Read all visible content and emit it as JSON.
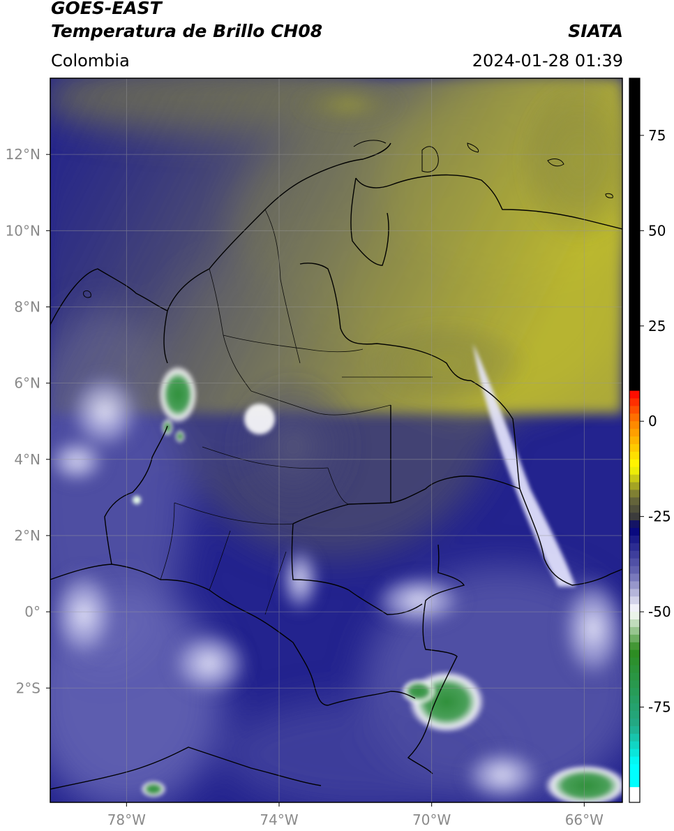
{
  "header": {
    "satellite": "GOES-EAST",
    "product": "Temperatura de Brillo CH08",
    "region": "Colombia",
    "agency": "SIATA",
    "timestamp": "2024-01-28 01:39"
  },
  "map": {
    "lon_range": [
      -80,
      -65
    ],
    "lat_range": [
      -5,
      14
    ],
    "lon_ticks": [
      {
        "value": -78,
        "label": "78°W"
      },
      {
        "value": -74,
        "label": "74°W"
      },
      {
        "value": -70,
        "label": "70°W"
      },
      {
        "value": -66,
        "label": "66°W"
      }
    ],
    "lat_ticks": [
      {
        "value": 12,
        "label": "12°N"
      },
      {
        "value": 10,
        "label": "10°N"
      },
      {
        "value": 8,
        "label": "8°N"
      },
      {
        "value": 6,
        "label": "6°N"
      },
      {
        "value": 4,
        "label": "4°N"
      },
      {
        "value": 2,
        "label": "2°N"
      },
      {
        "value": 0,
        "label": "0°"
      },
      {
        "value": -2,
        "label": "2°S"
      }
    ],
    "grid": true
  },
  "colorbar": {
    "range": [
      -100,
      90
    ],
    "ticks": [
      {
        "value": 75,
        "label": "75"
      },
      {
        "value": 50,
        "label": "50"
      },
      {
        "value": 25,
        "label": "25"
      },
      {
        "value": 0,
        "label": "0"
      },
      {
        "value": -25,
        "label": "-25"
      },
      {
        "value": -50,
        "label": "-50"
      },
      {
        "value": -75,
        "label": "-75"
      }
    ],
    "stops": [
      {
        "value": 90,
        "color": "#000000"
      },
      {
        "value": 8,
        "color": "#000000"
      },
      {
        "value": 7.9,
        "color": "#ff0000"
      },
      {
        "value": 0,
        "color": "#ff7f00"
      },
      {
        "value": -12,
        "color": "#ffff00"
      },
      {
        "value": -20,
        "color": "#6e6e3a"
      },
      {
        "value": -25,
        "color": "#3c3c3c"
      },
      {
        "value": -28,
        "color": "#00007a"
      },
      {
        "value": -40,
        "color": "#6a6ab4"
      },
      {
        "value": -50,
        "color": "#ffffff"
      },
      {
        "value": -60,
        "color": "#2e8b1e"
      },
      {
        "value": -80,
        "color": "#22aa88"
      },
      {
        "value": -90,
        "color": "#00ffff"
      },
      {
        "value": -95,
        "color": "#00ffff"
      },
      {
        "value": -95.1,
        "color": "#ffffff"
      },
      {
        "value": -100,
        "color": "#ffffff"
      }
    ]
  }
}
